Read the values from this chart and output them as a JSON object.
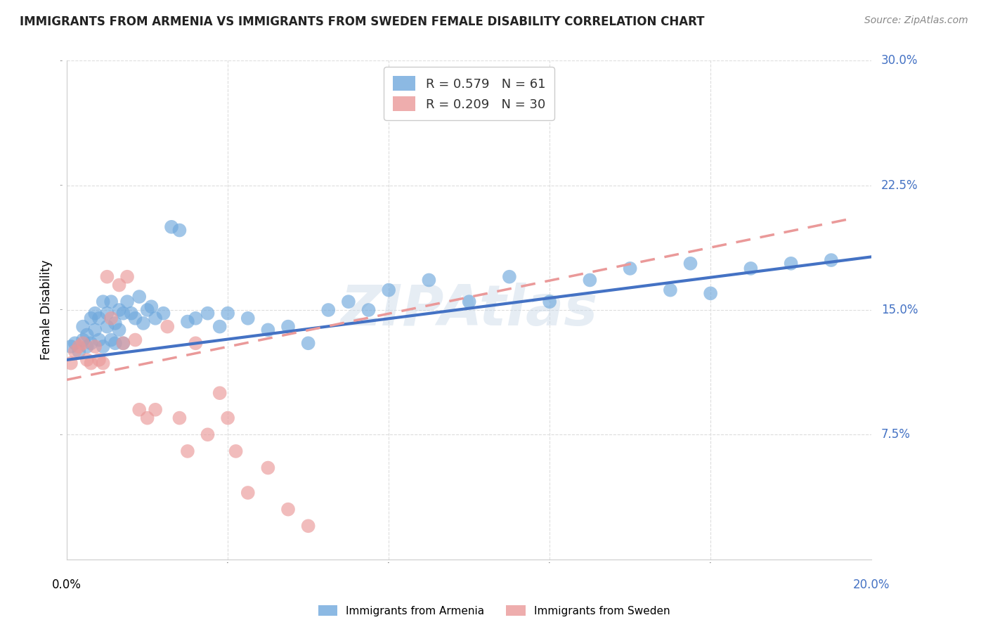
{
  "title": "IMMIGRANTS FROM ARMENIA VS IMMIGRANTS FROM SWEDEN FEMALE DISABILITY CORRELATION CHART",
  "source": "Source: ZipAtlas.com",
  "ylabel_label": "Female Disability",
  "xlim": [
    0.0,
    0.2
  ],
  "ylim": [
    0.0,
    0.3
  ],
  "armenia_color": "#6fa8dc",
  "armenia_color_dark": "#4472c4",
  "sweden_color": "#ea9999",
  "sweden_color_dark": "#cc4444",
  "armenia_R": 0.579,
  "armenia_N": 61,
  "sweden_R": 0.209,
  "sweden_N": 30,
  "armenia_scatter_x": [
    0.001,
    0.002,
    0.003,
    0.004,
    0.004,
    0.005,
    0.005,
    0.006,
    0.006,
    0.007,
    0.007,
    0.008,
    0.008,
    0.009,
    0.009,
    0.01,
    0.01,
    0.011,
    0.011,
    0.012,
    0.012,
    0.013,
    0.013,
    0.014,
    0.014,
    0.015,
    0.016,
    0.017,
    0.018,
    0.019,
    0.02,
    0.021,
    0.022,
    0.024,
    0.026,
    0.028,
    0.03,
    0.032,
    0.035,
    0.038,
    0.04,
    0.045,
    0.05,
    0.055,
    0.06,
    0.065,
    0.07,
    0.075,
    0.08,
    0.09,
    0.1,
    0.11,
    0.12,
    0.13,
    0.14,
    0.15,
    0.155,
    0.16,
    0.17,
    0.18,
    0.19
  ],
  "armenia_scatter_y": [
    0.128,
    0.13,
    0.125,
    0.132,
    0.14,
    0.135,
    0.128,
    0.145,
    0.13,
    0.148,
    0.138,
    0.132,
    0.145,
    0.128,
    0.155,
    0.14,
    0.148,
    0.132,
    0.155,
    0.13,
    0.142,
    0.138,
    0.15,
    0.13,
    0.148,
    0.155,
    0.148,
    0.145,
    0.158,
    0.142,
    0.15,
    0.152,
    0.145,
    0.148,
    0.2,
    0.198,
    0.143,
    0.145,
    0.148,
    0.14,
    0.148,
    0.145,
    0.138,
    0.14,
    0.13,
    0.15,
    0.155,
    0.15,
    0.162,
    0.168,
    0.155,
    0.17,
    0.155,
    0.168,
    0.175,
    0.162,
    0.178,
    0.16,
    0.175,
    0.178,
    0.18
  ],
  "sweden_scatter_x": [
    0.001,
    0.002,
    0.003,
    0.004,
    0.005,
    0.006,
    0.007,
    0.008,
    0.009,
    0.01,
    0.011,
    0.013,
    0.014,
    0.015,
    0.017,
    0.018,
    0.02,
    0.022,
    0.025,
    0.028,
    0.03,
    0.032,
    0.035,
    0.038,
    0.04,
    0.042,
    0.045,
    0.05,
    0.055,
    0.06
  ],
  "sweden_scatter_y": [
    0.118,
    0.125,
    0.128,
    0.13,
    0.12,
    0.118,
    0.128,
    0.12,
    0.118,
    0.17,
    0.145,
    0.165,
    0.13,
    0.17,
    0.132,
    0.09,
    0.085,
    0.09,
    0.14,
    0.085,
    0.065,
    0.13,
    0.075,
    0.1,
    0.085,
    0.065,
    0.04,
    0.055,
    0.03,
    0.02
  ],
  "armenia_line_x0": 0.0,
  "armenia_line_x1": 0.2,
  "armenia_line_y0": 0.12,
  "armenia_line_y1": 0.182,
  "sweden_line_x0": 0.0,
  "sweden_line_x1": 0.195,
  "sweden_line_y0": 0.108,
  "sweden_line_y1": 0.205,
  "background_color": "#ffffff",
  "grid_color": "#dddddd",
  "ytick_color": "#4472c4",
  "xtick_right_color": "#4472c4"
}
